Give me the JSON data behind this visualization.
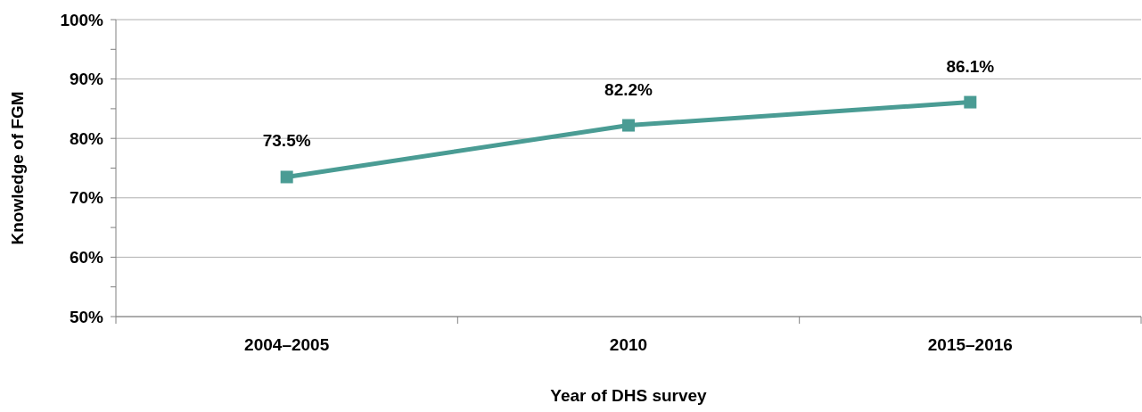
{
  "chart_data": {
    "type": "line",
    "xlabel": "Year of DHS survey",
    "ylabel": "Knowledge of FGM",
    "categories": [
      "2004–2005",
      "2010",
      "2015–2016"
    ],
    "series": [
      {
        "color": "#4a9c94",
        "values": [
          73.5,
          82.2,
          86.1
        ],
        "value_labels": [
          "73.5%",
          "82.2%",
          "86.1%"
        ]
      }
    ],
    "ylim": [
      50,
      100
    ],
    "yticks": [
      {
        "value": 50,
        "label": "50%"
      },
      {
        "value": 55,
        "label": null
      },
      {
        "value": 60,
        "label": "60%"
      },
      {
        "value": 65,
        "label": null
      },
      {
        "value": 70,
        "label": "70%"
      },
      {
        "value": 75,
        "label": null
      },
      {
        "value": 80,
        "label": "80%"
      },
      {
        "value": 85,
        "label": null
      },
      {
        "value": 90,
        "label": "90%"
      },
      {
        "value": 95,
        "label": null
      },
      {
        "value": 100,
        "label": "100%"
      }
    ],
    "grid": "y",
    "marker": "square",
    "line_style": "solid"
  }
}
